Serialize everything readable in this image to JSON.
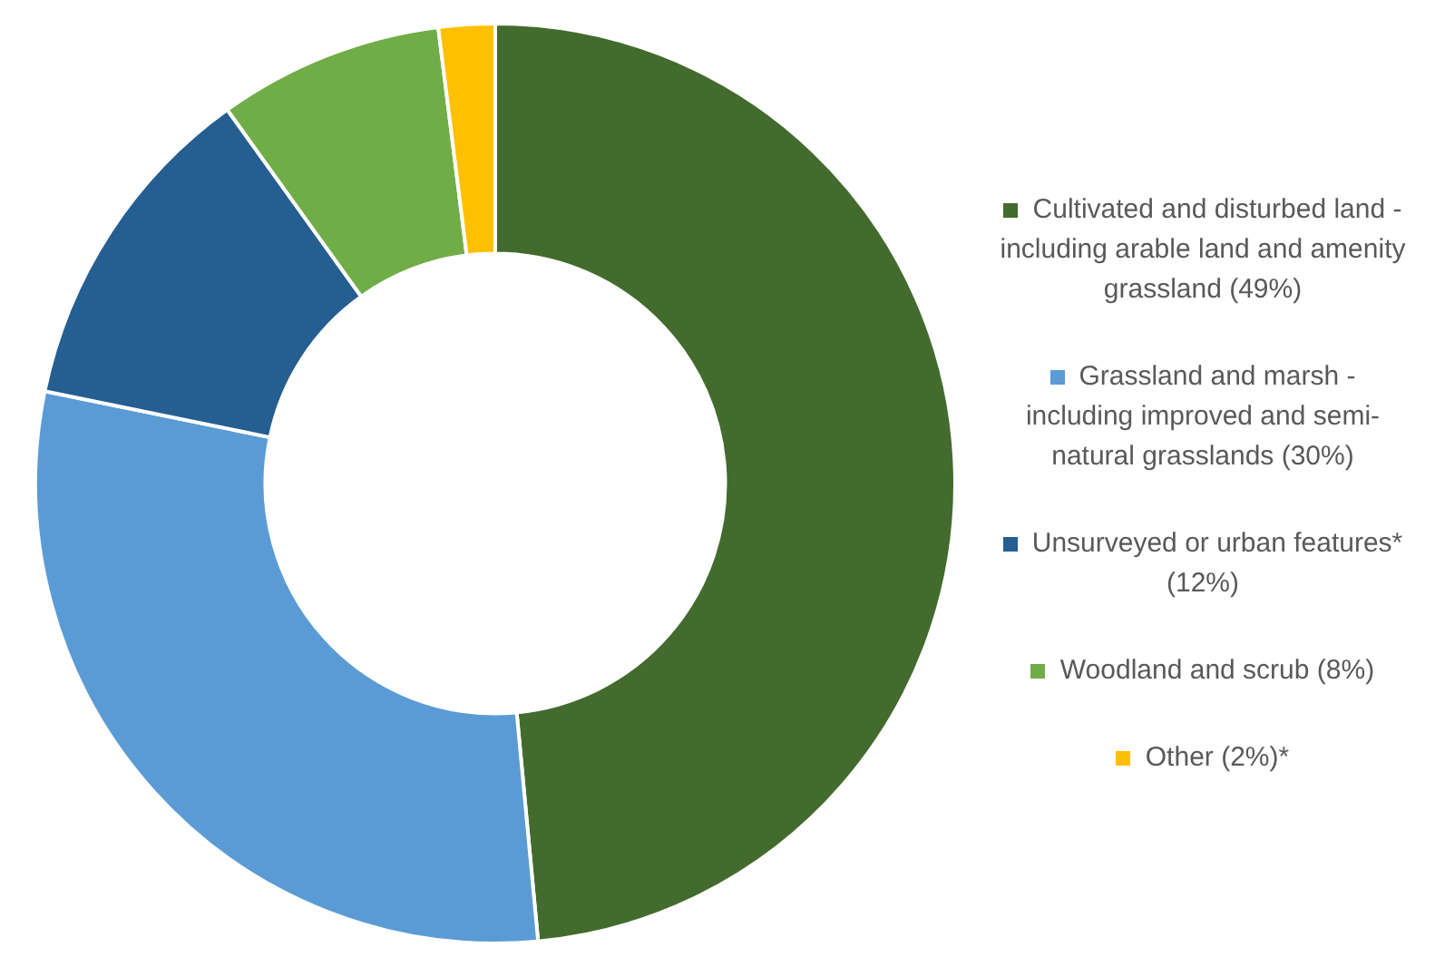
{
  "chart_data": {
    "type": "donut",
    "categories": [
      "Cultivated and disturbed land - including arable land and amenity grassland (49%)",
      "Grassland and marsh - including improved and semi-natural grasslands (30%)",
      "Unsurveyed or urban features* (12%)",
      "Woodland and scrub (8%)",
      "Other (2%)*"
    ],
    "values": [
      49,
      30,
      12,
      8,
      2
    ],
    "colors": [
      "#436b2d",
      "#5b9bd5",
      "#255e91",
      "#70ad47",
      "#ffc000"
    ],
    "legend": "right"
  }
}
